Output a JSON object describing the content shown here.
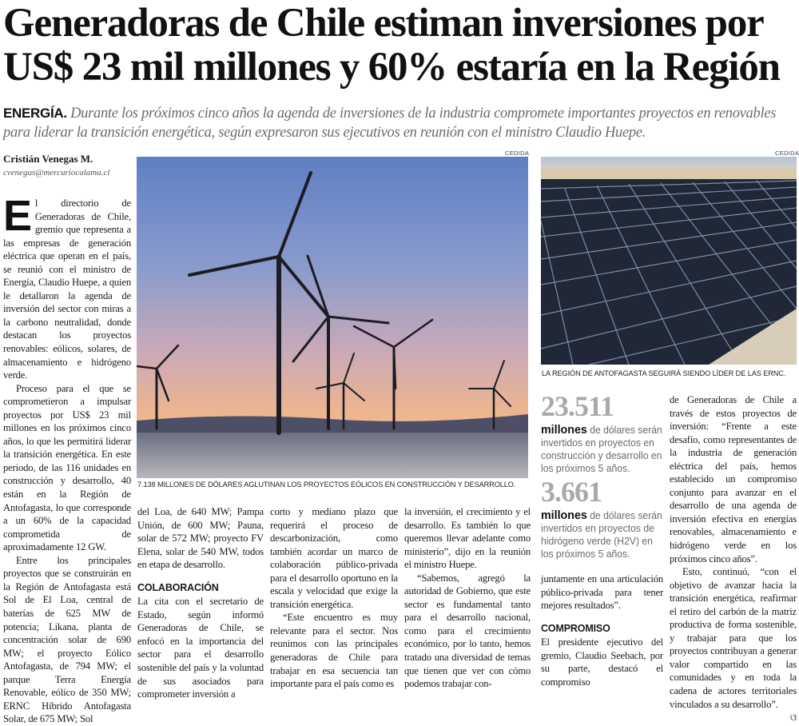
{
  "headline": "Generadoras de Chile estiman inversiones por US$ 23 mil millones y 60% estaría en la Región",
  "deck": {
    "kicker": "ENERGÍA.",
    "text": "Durante los próximos cinco años la agenda de inversiones de la industria compromete importantes proyectos en renovables para liderar la transición energética, según expresaron sus ejecutivos en reunión con el ministro Claudio Huepe."
  },
  "byline": {
    "author": "Cristián Venegas M.",
    "email": "cvenegas@mercuriocalama.cl"
  },
  "photos": [
    {
      "credit": "CEDIDA",
      "caption": "7.138 MILLONES DE DÓLARES AGLUTINAN LOS PROYECTOS EÓLICOS EN CONSTRUCCIÓN Y DESARROLLO.",
      "subject": "wind-turbines-sunset"
    },
    {
      "credit": "CEDIDA",
      "caption": "LA REGIÓN DE ANTOFAGASTA SEGUIRÁ SIENDO LÍDER DE LAS ERNC.",
      "subject": "solar-panel-field"
    }
  ],
  "body": {
    "dropcap": "E",
    "col1": [
      "l directorio de Generadoras de Chile, gremio que representa a las empresas de generación eléctrica que operan en el país, se reunió con el ministro de Energía, Claudio Huepe, a quien le detallaron la agenda de inversión del sector con miras a la carbono neutralidad, donde destacan los proyectos renovables: eólicos, solares, de almacenamiento e hidrógeno verde.",
      "Proceso para el que se comprometieron a impulsar proyectos por US$ 23 mil millones en los próximos cinco años, lo que les permitirá liderar la transición energética. En este periodo, de las 116 unidades en construcción y desarrollo, 40 están en la Región de Antofagasta, lo que corresponde a un 60% de la capacidad comprometida de aproximadamente 12 GW.",
      "Entre los principales proyectos que se construirán en la Región de Antofagasta está Sol de El Loa, central de baterías de 625 MW de potencia; Likana, planta de concentración solar de 690 MW; el proyecto Eólico Antofagasta, de 794 MW; el parque Terra Energía Renovable, eólico de 350 MW; ERNC Híbrido Antofagasta Solar, de 675 MW; Sol"
    ],
    "col2": {
      "continued": "del Loa, de 640 MW; Pampa Unión, de 600 MW; Pauna, solar de 572 MW; proyecto FV Elena, solar de 540 MW, todos en etapa de desarrollo.",
      "subhead": "COLABORACIÓN",
      "text": "La cita con el secretario de Estado, según informó Generadoras de Chile, se enfocó en la importancia del sector para el desarrollo sostenible del país y la voluntad de sus asociados para comprometer inversión a"
    },
    "col3": [
      "corto y mediano plazo que requerirá el proceso de descarbonización, como también acordar un marco de colaboración público-privada para el desarrollo oportuno en la escala y velocidad que exige la transición energética.",
      "“Este encuentro es muy relevante para el sector. Nos reunimos con las principales generadoras de Chile para trabajar en esa secuencia tan importante para el país como es"
    ],
    "col4": [
      "la inversión, el crecimiento y el desarrollo. Es también lo que queremos llevar adelante como ministerio”, dijo en la reunión el ministro Huepe.",
      "“Sabemos, agregó la autoridad de Gobierno, que este sector es fundamental tanto para el desarrollo nacional, como para el crecimiento económico, por lo tanto, hemos tratado una diversidad de temas que tienen que ver con cómo podemos trabajar con-"
    ],
    "col5": {
      "continued": "juntamente en una articulación público-privada para tener mejores resultados”.",
      "subhead": "COMPROMISO",
      "text": "El presidente ejecutivo del gremio, Claudio Seebach, por su parte, destacó el compromiso"
    },
    "col6": [
      "de Generadoras de Chile a través de estos proyectos de inversión: “Frente a este desafío, como representantes de la industria de generación eléctrica del país, hemos establecido un compromiso conjunto para avanzar en el desarrollo de una agenda de inversión efectiva en energías renovables, almacenamiento e hidrógeno verde en los próximos cinco años”.",
      "Esto, continuó, “con el objetivo de avanzar hacia la transición energética, reafirmar el retiro del carbón de la matriz productiva de forma sostenible, y trabajar para que los proyectos contribuyan a generar valor compartido en las comunidades y en toda la cadena de actores territoriales vinculados a su desarrollo”."
    ],
    "end_mark": "ଓ"
  },
  "stats": [
    {
      "number": "23.511",
      "unit": "millones",
      "text": "de dólares serán invertidos en proyectos en construcción y desarrollo en los próximos 5 años."
    },
    {
      "number": "3.661",
      "unit": "millones",
      "text": "de dólares serán invertidos en proyectos de hidrógeno verde (H2V) en los próximos 5 años."
    }
  ]
}
